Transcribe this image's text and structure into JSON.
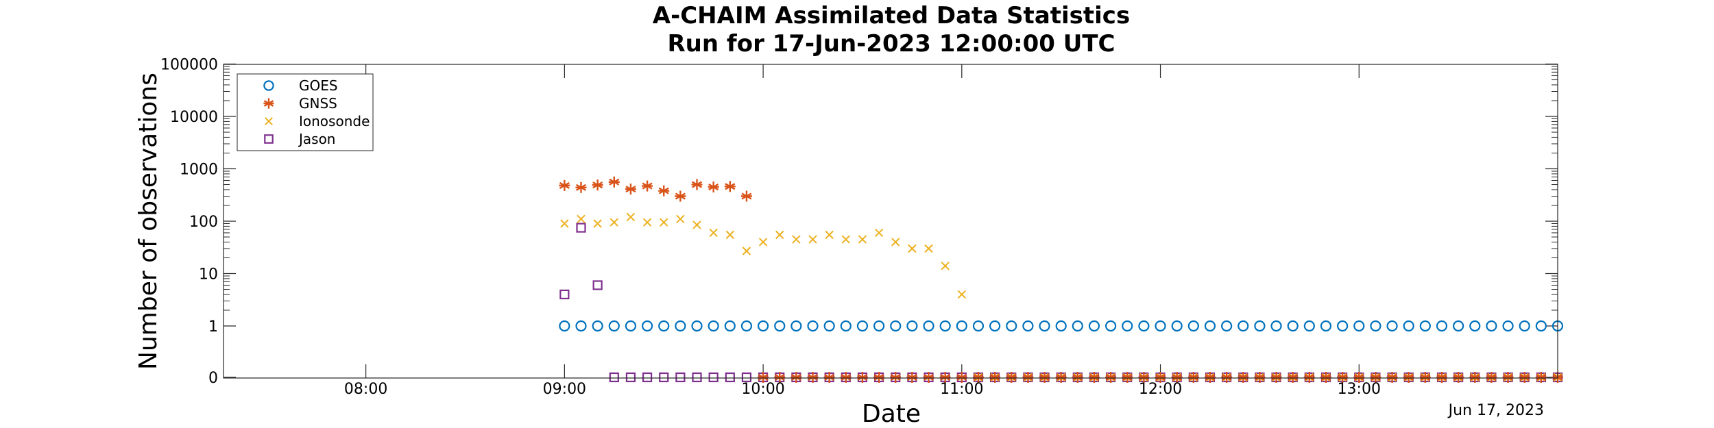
{
  "chart_data": {
    "type": "scatter",
    "title": "A-CHAIM Assimilated Data Statistics",
    "subtitle": "Run for 17-Jun-2023 12:00:00 UTC",
    "xlabel": "Date",
    "ylabel": "Number of observations",
    "date_label": "Jun 17, 2023",
    "x_scale": "time",
    "y_scale": "log (with zero row)",
    "xlim": [
      "07:17",
      "14:00"
    ],
    "ylim": [
      0,
      100000
    ],
    "x_ticks": [
      "08:00",
      "09:00",
      "10:00",
      "11:00",
      "12:00",
      "13:00"
    ],
    "y_ticks": [
      "0",
      "1",
      "10",
      "100",
      "1000",
      "10000",
      "100000"
    ],
    "legend_position": "top-left",
    "series": [
      {
        "name": "GOES",
        "marker": "circle",
        "color": "#0072BD",
        "x": [
          "09:00",
          "09:05",
          "09:10",
          "09:15",
          "09:20",
          "09:25",
          "09:30",
          "09:35",
          "09:40",
          "09:45",
          "09:50",
          "09:55",
          "10:00",
          "10:05",
          "10:10",
          "10:15",
          "10:20",
          "10:25",
          "10:30",
          "10:35",
          "10:40",
          "10:45",
          "10:50",
          "10:55",
          "11:00",
          "11:05",
          "11:10",
          "11:15",
          "11:20",
          "11:25",
          "11:30",
          "11:35",
          "11:40",
          "11:45",
          "11:50",
          "11:55",
          "12:00",
          "12:05",
          "12:10",
          "12:15",
          "12:20",
          "12:25",
          "12:30",
          "12:35",
          "12:40",
          "12:45",
          "12:50",
          "12:55",
          "13:00",
          "13:05",
          "13:10",
          "13:15",
          "13:20",
          "13:25",
          "13:30",
          "13:35",
          "13:40",
          "13:45",
          "13:50",
          "13:55",
          "14:00"
        ],
        "y": [
          1,
          1,
          1,
          1,
          1,
          1,
          1,
          1,
          1,
          1,
          1,
          1,
          1,
          1,
          1,
          1,
          1,
          1,
          1,
          1,
          1,
          1,
          1,
          1,
          1,
          1,
          1,
          1,
          1,
          1,
          1,
          1,
          1,
          1,
          1,
          1,
          1,
          1,
          1,
          1,
          1,
          1,
          1,
          1,
          1,
          1,
          1,
          1,
          1,
          1,
          1,
          1,
          1,
          1,
          1,
          1,
          1,
          1,
          1,
          1,
          1
        ]
      },
      {
        "name": "GNSS",
        "marker": "asterisk",
        "color": "#D95319",
        "x": [
          "09:00",
          "09:05",
          "09:10",
          "09:15",
          "09:20",
          "09:25",
          "09:30",
          "09:35",
          "09:40",
          "09:45",
          "09:50",
          "09:55",
          "10:00",
          "10:05",
          "10:10",
          "10:15",
          "10:20",
          "10:25",
          "10:30",
          "10:35",
          "10:40",
          "10:45",
          "10:50",
          "10:55",
          "11:00",
          "11:05",
          "11:10",
          "11:15",
          "11:20",
          "11:25",
          "11:30",
          "11:35",
          "11:40",
          "11:45",
          "11:50",
          "11:55",
          "12:00",
          "12:05",
          "12:10",
          "12:15",
          "12:20",
          "12:25",
          "12:30",
          "12:35",
          "12:40",
          "12:45",
          "12:50",
          "12:55",
          "13:00",
          "13:05",
          "13:10",
          "13:15",
          "13:20",
          "13:25",
          "13:30",
          "13:35",
          "13:40",
          "13:45",
          "13:50",
          "13:55",
          "14:00"
        ],
        "y": [
          480,
          440,
          490,
          560,
          410,
          470,
          380,
          300,
          500,
          450,
          460,
          300,
          0,
          0,
          0,
          0,
          0,
          0,
          0,
          0,
          0,
          0,
          0,
          0,
          0,
          0,
          0,
          0,
          0,
          0,
          0,
          0,
          0,
          0,
          0,
          0,
          0,
          0,
          0,
          0,
          0,
          0,
          0,
          0,
          0,
          0,
          0,
          0,
          0,
          0,
          0,
          0,
          0,
          0,
          0,
          0,
          0,
          0,
          0,
          0,
          0
        ]
      },
      {
        "name": "Ionosonde",
        "marker": "x",
        "color": "#EDB120",
        "x": [
          "09:00",
          "09:05",
          "09:10",
          "09:15",
          "09:20",
          "09:25",
          "09:30",
          "09:35",
          "09:40",
          "09:45",
          "09:50",
          "09:55",
          "10:00",
          "10:05",
          "10:10",
          "10:15",
          "10:20",
          "10:25",
          "10:30",
          "10:35",
          "10:40",
          "10:45",
          "10:50",
          "10:55",
          "11:00",
          "11:05",
          "11:10",
          "11:15",
          "11:20",
          "11:25",
          "11:30",
          "11:35",
          "11:40",
          "11:45",
          "11:50",
          "11:55",
          "12:00",
          "12:05",
          "12:10",
          "12:15",
          "12:20",
          "12:25",
          "12:30",
          "12:35",
          "12:40",
          "12:45",
          "12:50",
          "12:55",
          "13:00",
          "13:05",
          "13:10",
          "13:15",
          "13:20",
          "13:25",
          "13:30",
          "13:35",
          "13:40",
          "13:45",
          "13:50",
          "13:55",
          "14:00"
        ],
        "y": [
          90,
          110,
          90,
          95,
          120,
          95,
          95,
          110,
          85,
          60,
          55,
          27,
          40,
          55,
          45,
          45,
          55,
          45,
          45,
          60,
          40,
          30,
          30,
          14,
          4,
          0,
          0,
          0,
          0,
          0,
          0,
          0,
          0,
          0,
          0,
          0,
          0,
          0,
          0,
          0,
          0,
          0,
          0,
          0,
          0,
          0,
          0,
          0,
          0,
          0,
          0,
          0,
          0,
          0,
          0,
          0,
          0,
          0,
          0,
          0,
          0
        ]
      },
      {
        "name": "Jason",
        "marker": "square",
        "color": "#7E2F8E",
        "x": [
          "09:00",
          "09:05",
          "09:10",
          "09:15",
          "09:20",
          "09:25",
          "09:30",
          "09:35",
          "09:40",
          "09:45",
          "09:50",
          "09:55",
          "10:00",
          "10:05",
          "10:10",
          "10:15",
          "10:20",
          "10:25",
          "10:30",
          "10:35",
          "10:40",
          "10:45",
          "10:50",
          "10:55",
          "11:00",
          "11:05",
          "11:10",
          "11:15",
          "11:20",
          "11:25",
          "11:30",
          "11:35",
          "11:40",
          "11:45",
          "11:50",
          "11:55",
          "12:00",
          "12:05",
          "12:10",
          "12:15",
          "12:20",
          "12:25",
          "12:30",
          "12:35",
          "12:40",
          "12:45",
          "12:50",
          "12:55",
          "13:00",
          "13:05",
          "13:10",
          "13:15",
          "13:20",
          "13:25",
          "13:30",
          "13:35",
          "13:40",
          "13:45",
          "13:50",
          "13:55",
          "14:00"
        ],
        "y": [
          4,
          75,
          6,
          0,
          0,
          0,
          0,
          0,
          0,
          0,
          0,
          0,
          0,
          0,
          0,
          0,
          0,
          0,
          0,
          0,
          0,
          0,
          0,
          0,
          0,
          0,
          0,
          0,
          0,
          0,
          0,
          0,
          0,
          0,
          0,
          0,
          0,
          0,
          0,
          0,
          0,
          0,
          0,
          0,
          0,
          0,
          0,
          0,
          0,
          0,
          0,
          0,
          0,
          0,
          0,
          0,
          0,
          0,
          0,
          0,
          0
        ]
      }
    ]
  }
}
